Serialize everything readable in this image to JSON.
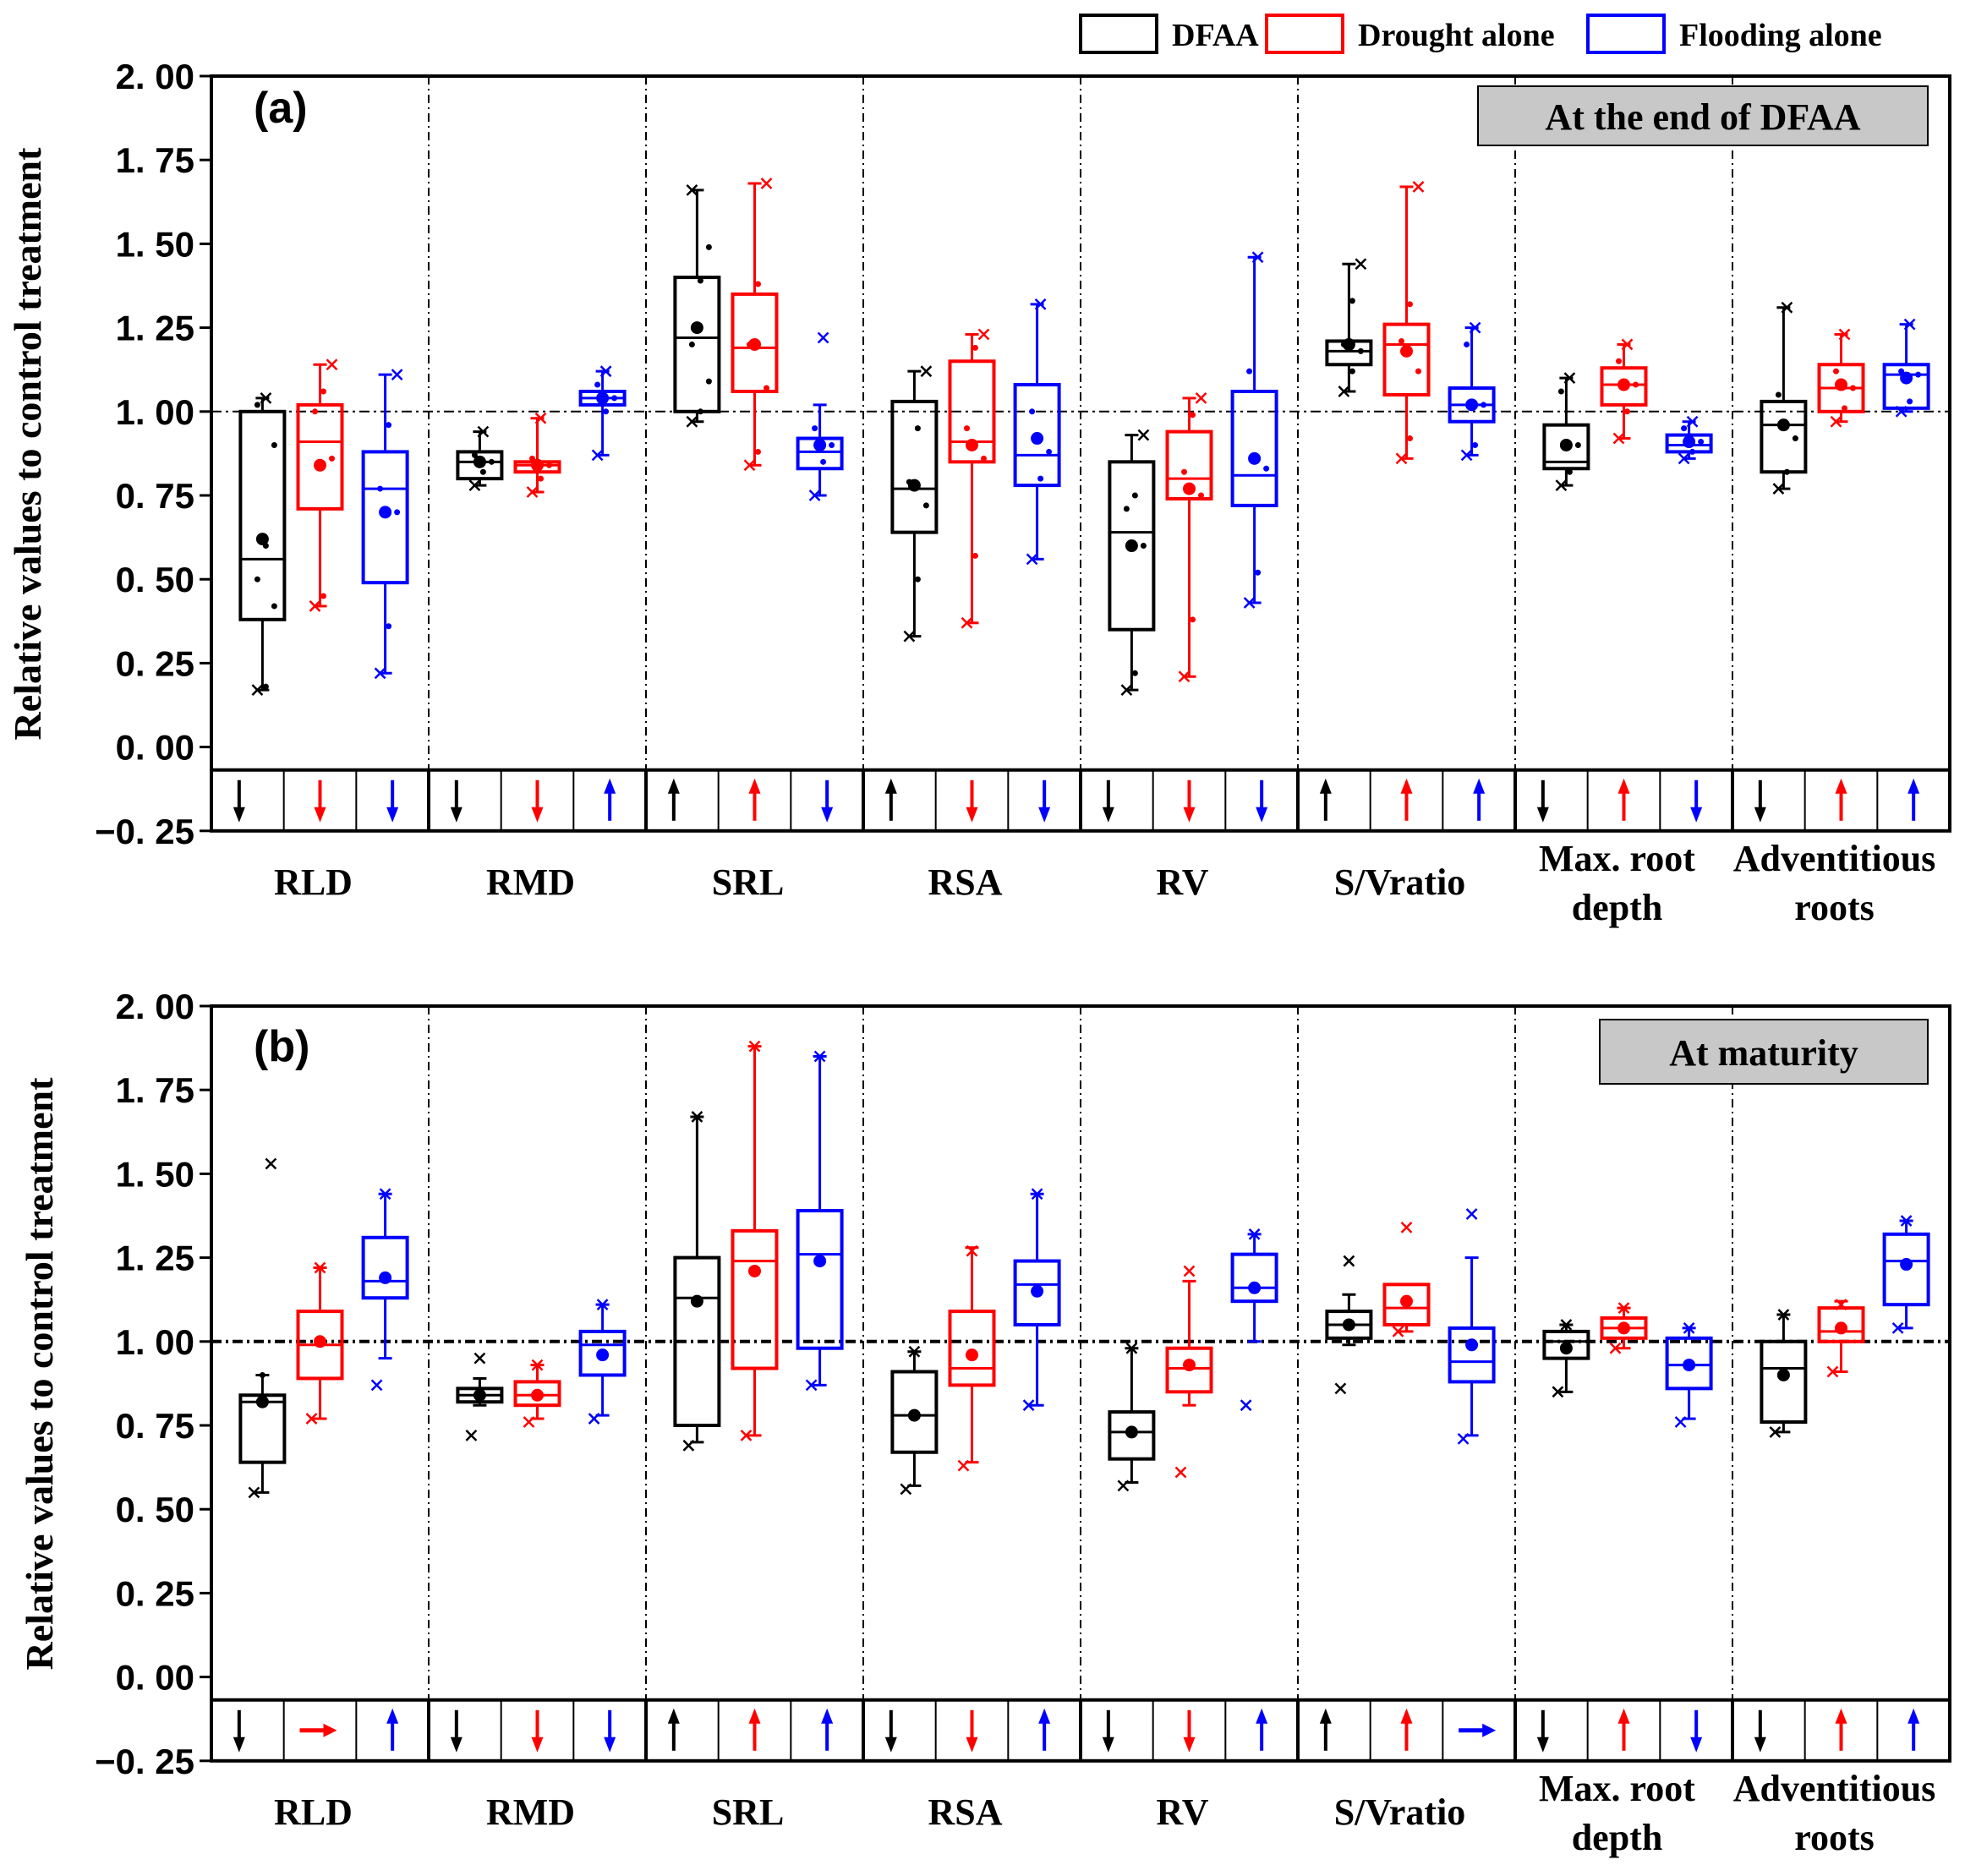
{
  "chart_data": [
    {
      "type": "box",
      "panel_label": "(a)",
      "title": "At the end of DFAA",
      "ylabel": "Relative values to control treatment",
      "ylim": [
        -0.25,
        2.0
      ],
      "yticks": [
        "2. 00",
        "1. 75",
        "1. 50",
        "1. 25",
        "1. 00",
        "0. 75",
        "0. 50",
        "0. 25",
        "0. 00",
        "−0. 25"
      ],
      "reference_line": 1.0,
      "categories": [
        [
          "RLD"
        ],
        [
          "RMD"
        ],
        [
          "SRL"
        ],
        [
          "RSA"
        ],
        [
          "RV"
        ],
        [
          "S/Vratio"
        ],
        [
          "Max. root",
          "depth"
        ],
        [
          "Adventitious",
          "roots"
        ]
      ],
      "series": [
        {
          "name": "DFAA",
          "boxes": [
            {
              "q1": 0.38,
              "med": 0.56,
              "q3": 1.0,
              "lo": 0.17,
              "hi": 1.04,
              "mean": 0.62,
              "pts": [
                0.17,
                0.18,
                0.42,
                0.5,
                0.6,
                0.9,
                1.02,
                1.04
              ]
            },
            {
              "q1": 0.8,
              "med": 0.85,
              "q3": 0.88,
              "lo": 0.78,
              "hi": 0.94,
              "mean": 0.85,
              "pts": [
                0.78,
                0.82,
                0.85,
                0.87,
                0.94
              ]
            },
            {
              "q1": 1.0,
              "med": 1.22,
              "q3": 1.4,
              "lo": 0.97,
              "hi": 1.66,
              "mean": 1.25,
              "pts": [
                0.97,
                1.0,
                1.09,
                1.2,
                1.39,
                1.49,
                1.66
              ]
            },
            {
              "q1": 0.64,
              "med": 0.77,
              "q3": 1.03,
              "lo": 0.33,
              "hi": 1.12,
              "mean": 0.78,
              "pts": [
                0.33,
                0.5,
                0.72,
                0.79,
                0.95,
                1.12
              ]
            },
            {
              "q1": 0.35,
              "med": 0.64,
              "q3": 0.85,
              "lo": 0.17,
              "hi": 0.93,
              "mean": 0.6,
              "pts": [
                0.17,
                0.22,
                0.6,
                0.71,
                0.75,
                0.93
              ]
            },
            {
              "q1": 1.14,
              "med": 1.18,
              "q3": 1.21,
              "lo": 1.06,
              "hi": 1.44,
              "mean": 1.2,
              "pts": [
                1.06,
                1.12,
                1.18,
                1.2,
                1.33,
                1.44
              ]
            },
            {
              "q1": 0.83,
              "med": 0.85,
              "q3": 0.96,
              "lo": 0.78,
              "hi": 1.1,
              "mean": 0.9,
              "pts": [
                0.78,
                0.82,
                0.9,
                1.06,
                1.1
              ]
            },
            {
              "q1": 0.82,
              "med": 0.96,
              "q3": 1.03,
              "lo": 0.77,
              "hi": 1.31,
              "mean": 0.96,
              "pts": [
                0.77,
                0.82,
                0.92,
                1.05,
                1.31
              ]
            }
          ],
          "trend": [
            "down",
            "down",
            "up",
            "up",
            "down",
            "up",
            "down",
            "down"
          ]
        },
        {
          "name": "Drought alone",
          "boxes": [
            {
              "q1": 0.71,
              "med": 0.91,
              "q3": 1.02,
              "lo": 0.42,
              "hi": 1.14,
              "mean": 0.84,
              "pts": [
                0.42,
                0.45,
                0.86,
                1.0,
                1.06,
                1.14
              ]
            },
            {
              "q1": 0.82,
              "med": 0.84,
              "q3": 0.85,
              "lo": 0.76,
              "hi": 0.98,
              "mean": 0.84,
              "pts": [
                0.76,
                0.8,
                0.84,
                0.86,
                0.98
              ]
            },
            {
              "q1": 1.06,
              "med": 1.19,
              "q3": 1.35,
              "lo": 0.84,
              "hi": 1.68,
              "mean": 1.2,
              "pts": [
                0.84,
                0.88,
                1.07,
                1.2,
                1.38,
                1.68
              ]
            },
            {
              "q1": 0.85,
              "med": 0.91,
              "q3": 1.15,
              "lo": 0.37,
              "hi": 1.23,
              "mean": 0.9,
              "pts": [
                0.37,
                0.57,
                0.86,
                0.95,
                1.19,
                1.23
              ]
            },
            {
              "q1": 0.74,
              "med": 0.8,
              "q3": 0.94,
              "lo": 0.21,
              "hi": 1.04,
              "mean": 0.77,
              "pts": [
                0.21,
                0.38,
                0.75,
                0.82,
                0.99,
                1.04
              ]
            },
            {
              "q1": 1.05,
              "med": 1.2,
              "q3": 1.26,
              "lo": 0.86,
              "hi": 1.67,
              "mean": 1.18,
              "pts": [
                0.86,
                0.92,
                1.12,
                1.21,
                1.32,
                1.67
              ]
            },
            {
              "q1": 1.02,
              "med": 1.08,
              "q3": 1.13,
              "lo": 0.92,
              "hi": 1.2,
              "mean": 1.08,
              "pts": [
                0.92,
                1.0,
                1.08,
                1.15,
                1.2
              ]
            },
            {
              "q1": 1.0,
              "med": 1.07,
              "q3": 1.14,
              "lo": 0.97,
              "hi": 1.23,
              "mean": 1.08,
              "pts": [
                0.97,
                1.01,
                1.07,
                1.12,
                1.23
              ]
            }
          ],
          "trend": [
            "down",
            "down",
            "up",
            "down",
            "down",
            "up",
            "up",
            "up"
          ]
        },
        {
          "name": "Flooding alone",
          "boxes": [
            {
              "q1": 0.49,
              "med": 0.77,
              "q3": 0.88,
              "lo": 0.22,
              "hi": 1.11,
              "mean": 0.7,
              "pts": [
                0.22,
                0.36,
                0.7,
                0.77,
                0.96,
                1.11
              ]
            },
            {
              "q1": 1.02,
              "med": 1.04,
              "q3": 1.06,
              "lo": 0.87,
              "hi": 1.12,
              "mean": 1.04,
              "pts": [
                0.87,
                1.0,
                1.04,
                1.08,
                1.12
              ]
            },
            {
              "q1": 0.83,
              "med": 0.88,
              "q3": 0.92,
              "lo": 0.75,
              "hi": 1.02,
              "mean": 0.9,
              "pts": [
                0.75,
                0.85,
                0.9,
                0.95,
                1.22
              ]
            },
            {
              "q1": 0.78,
              "med": 0.87,
              "q3": 1.08,
              "lo": 0.56,
              "hi": 1.32,
              "mean": 0.92,
              "pts": [
                0.56,
                0.8,
                0.88,
                1.0,
                1.32
              ]
            },
            {
              "q1": 0.72,
              "med": 0.81,
              "q3": 1.06,
              "lo": 0.43,
              "hi": 1.46,
              "mean": 0.86,
              "pts": [
                0.43,
                0.52,
                0.83,
                1.12,
                1.46
              ]
            },
            {
              "q1": 0.97,
              "med": 1.02,
              "q3": 1.07,
              "lo": 0.87,
              "hi": 1.25,
              "mean": 1.02,
              "pts": [
                0.87,
                0.9,
                1.02,
                1.2,
                1.25
              ]
            },
            {
              "q1": 0.88,
              "med": 0.9,
              "q3": 0.93,
              "lo": 0.86,
              "hi": 0.97,
              "mean": 0.91,
              "pts": [
                0.86,
                0.88,
                0.91,
                0.95,
                0.97
              ]
            },
            {
              "q1": 1.01,
              "med": 1.11,
              "q3": 1.14,
              "lo": 1.0,
              "hi": 1.26,
              "mean": 1.1,
              "pts": [
                1.0,
                1.03,
                1.11,
                1.12,
                1.26
              ]
            }
          ],
          "trend": [
            "down",
            "up",
            "down",
            "down",
            "down",
            "up",
            "down",
            "up"
          ]
        }
      ]
    },
    {
      "type": "box",
      "panel_label": "(b)",
      "title": "At maturity",
      "ylabel": "Relative values to control treatment",
      "ylim": [
        -0.25,
        2.0
      ],
      "yticks": [
        "2. 00",
        "1. 75",
        "1. 50",
        "1. 25",
        "1. 00",
        "0. 75",
        "0. 50",
        "0. 25",
        "0. 00",
        "−0. 25"
      ],
      "reference_line": 1.0,
      "categories": [
        [
          "RLD"
        ],
        [
          "RMD"
        ],
        [
          "SRL"
        ],
        [
          "RSA"
        ],
        [
          "RV"
        ],
        [
          "S/Vratio"
        ],
        [
          "Max. root",
          "depth"
        ],
        [
          "Adventitious",
          "roots"
        ]
      ],
      "series": [
        {
          "name": "DFAA",
          "boxes": [
            {
              "q1": 0.64,
              "med": 0.82,
              "q3": 0.84,
              "lo": 0.55,
              "hi": 0.9,
              "mean": 0.82,
              "pts": [
                0.55,
                0.9,
                1.53
              ]
            },
            {
              "q1": 0.82,
              "med": 0.84,
              "q3": 0.86,
              "lo": 0.81,
              "hi": 0.89,
              "mean": 0.84,
              "pts": [
                0.72,
                0.95
              ]
            },
            {
              "q1": 0.75,
              "med": 1.13,
              "q3": 1.25,
              "lo": 0.7,
              "hi": 1.67,
              "mean": 1.12,
              "pts": [
                0.69,
                1.67
              ]
            },
            {
              "q1": 0.67,
              "med": 0.78,
              "q3": 0.91,
              "lo": 0.57,
              "hi": 0.97,
              "mean": 0.78,
              "pts": [
                0.56,
                0.97
              ]
            },
            {
              "q1": 0.65,
              "med": 0.73,
              "q3": 0.79,
              "lo": 0.58,
              "hi": 0.98,
              "mean": 0.73,
              "pts": [
                0.57,
                0.98
              ]
            },
            {
              "q1": 1.01,
              "med": 1.05,
              "q3": 1.09,
              "lo": 0.99,
              "hi": 1.14,
              "mean": 1.05,
              "pts": [
                0.86,
                1.24
              ]
            },
            {
              "q1": 0.95,
              "med": 1.0,
              "q3": 1.03,
              "lo": 0.85,
              "hi": 1.05,
              "mean": 0.98,
              "pts": [
                0.85,
                1.05
              ]
            },
            {
              "q1": 0.76,
              "med": 0.92,
              "q3": 1.0,
              "lo": 0.73,
              "hi": 1.08,
              "mean": 0.9,
              "pts": [
                0.73,
                1.08
              ]
            }
          ],
          "trend": [
            "down",
            "down",
            "up",
            "down",
            "down",
            "up",
            "down",
            "down"
          ]
        },
        {
          "name": "Drought alone",
          "boxes": [
            {
              "q1": 0.89,
              "med": 0.99,
              "q3": 1.09,
              "lo": 0.77,
              "hi": 1.22,
              "mean": 1.0,
              "pts": [
                0.77,
                1.22
              ]
            },
            {
              "q1": 0.81,
              "med": 0.84,
              "q3": 0.88,
              "lo": 0.77,
              "hi": 0.93,
              "mean": 0.84,
              "pts": [
                0.76,
                0.93
              ]
            },
            {
              "q1": 0.92,
              "med": 1.24,
              "q3": 1.33,
              "lo": 0.72,
              "hi": 1.88,
              "mean": 1.21,
              "pts": [
                0.72,
                1.88
              ]
            },
            {
              "q1": 0.87,
              "med": 0.92,
              "q3": 1.09,
              "lo": 0.64,
              "hi": 1.28,
              "mean": 0.96,
              "pts": [
                0.63,
                1.27
              ]
            },
            {
              "q1": 0.85,
              "med": 0.92,
              "q3": 0.98,
              "lo": 0.81,
              "hi": 1.18,
              "mean": 0.93,
              "pts": [
                0.61,
                1.21
              ]
            },
            {
              "q1": 1.05,
              "med": 1.1,
              "q3": 1.17,
              "lo": 1.03,
              "hi": 1.17,
              "mean": 1.12,
              "pts": [
                1.03,
                1.34
              ]
            },
            {
              "q1": 1.01,
              "med": 1.04,
              "q3": 1.07,
              "lo": 0.98,
              "hi": 1.1,
              "mean": 1.04,
              "pts": [
                0.98,
                1.1
              ]
            },
            {
              "q1": 1.0,
              "med": 1.03,
              "q3": 1.1,
              "lo": 0.91,
              "hi": 1.12,
              "mean": 1.04,
              "pts": [
                0.91,
                1.11
              ]
            }
          ],
          "trend": [
            "right",
            "down",
            "up",
            "down",
            "down",
            "up",
            "up",
            "up"
          ]
        },
        {
          "name": "Flooding alone",
          "boxes": [
            {
              "q1": 1.13,
              "med": 1.18,
              "q3": 1.31,
              "lo": 0.95,
              "hi": 1.44,
              "mean": 1.19,
              "pts": [
                0.87,
                1.44
              ]
            },
            {
              "q1": 0.9,
              "med": 0.99,
              "q3": 1.03,
              "lo": 0.78,
              "hi": 1.11,
              "mean": 0.96,
              "pts": [
                0.77,
                1.11
              ]
            },
            {
              "q1": 0.98,
              "med": 1.26,
              "q3": 1.39,
              "lo": 0.87,
              "hi": 1.85,
              "mean": 1.24,
              "pts": [
                0.87,
                1.85
              ]
            },
            {
              "q1": 1.05,
              "med": 1.17,
              "q3": 1.24,
              "lo": 0.81,
              "hi": 1.44,
              "mean": 1.15,
              "pts": [
                0.81,
                1.44
              ]
            },
            {
              "q1": 1.12,
              "med": 1.16,
              "q3": 1.26,
              "lo": 1.0,
              "hi": 1.32,
              "mean": 1.16,
              "pts": [
                0.81,
                1.32
              ]
            },
            {
              "q1": 0.88,
              "med": 0.94,
              "q3": 1.04,
              "lo": 0.72,
              "hi": 1.25,
              "mean": 0.99,
              "pts": [
                0.71,
                1.38
              ]
            },
            {
              "q1": 0.86,
              "med": 0.93,
              "q3": 1.01,
              "lo": 0.77,
              "hi": 1.04,
              "mean": 0.93,
              "pts": [
                0.76,
                1.04
              ]
            },
            {
              "q1": 1.11,
              "med": 1.24,
              "q3": 1.32,
              "lo": 1.04,
              "hi": 1.36,
              "mean": 1.23,
              "pts": [
                1.04,
                1.36
              ]
            }
          ],
          "trend": [
            "up",
            "down",
            "up",
            "up",
            "up",
            "right",
            "down",
            "up"
          ]
        }
      ]
    }
  ],
  "legend": [
    {
      "label": "DFAA",
      "color": "#000000"
    },
    {
      "label": "Drought alone",
      "color": "#ff0000"
    },
    {
      "label": "Flooding alone",
      "color": "#0000ff"
    }
  ]
}
